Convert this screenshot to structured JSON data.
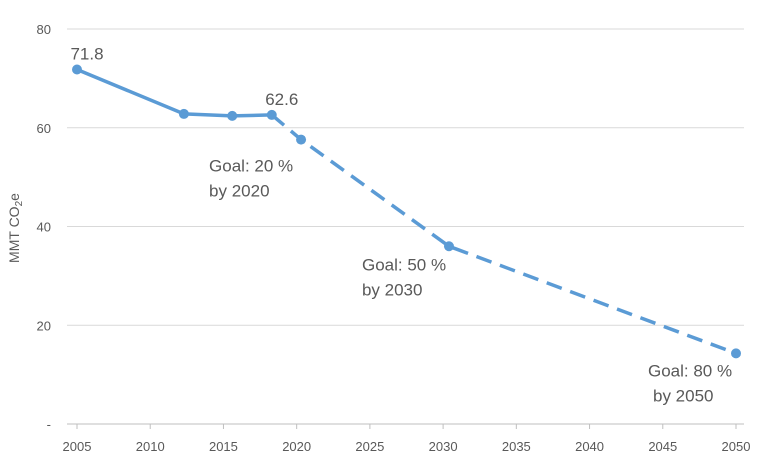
{
  "chart_data": {
    "type": "line",
    "title": "",
    "xlabel": "",
    "ylabel": "MMT CO",
    "ylabel_subscript": "2",
    "ylabel_suffix": "e",
    "xlim": [
      2005,
      2050
    ],
    "ylim": [
      0,
      80
    ],
    "xticks": [
      "2005",
      "2010",
      "2015",
      "2020",
      "2025",
      "2030",
      "2035",
      "2040",
      "2045",
      "2050"
    ],
    "yticks": [
      {
        "value": 0,
        "label": "-"
      },
      {
        "value": 20,
        "label": "20"
      },
      {
        "value": 40,
        "label": "40"
      },
      {
        "value": 60,
        "label": "60"
      },
      {
        "value": 80,
        "label": "80"
      }
    ],
    "grid": "horizontal",
    "color": "#5b9bd5",
    "series": [
      {
        "style": "solid",
        "x": [
          2005,
          2012.3,
          2015.6,
          2018.3
        ],
        "y": [
          71.8,
          62.8,
          62.4,
          62.6
        ]
      },
      {
        "style": "dashed",
        "x": [
          2018.3,
          2020.3,
          2030.4,
          2050
        ],
        "y": [
          62.6,
          57.6,
          36.0,
          14.3
        ]
      }
    ],
    "markers": [
      {
        "x": 2005,
        "y": 71.8
      },
      {
        "x": 2012.3,
        "y": 62.8
      },
      {
        "x": 2015.6,
        "y": 62.4
      },
      {
        "x": 2018.3,
        "y": 62.6
      },
      {
        "x": 2020.3,
        "y": 57.6
      },
      {
        "x": 2030.4,
        "y": 36.0
      },
      {
        "x": 2050,
        "y": 14.3
      }
    ],
    "data_labels": [
      {
        "text": "71.8",
        "x": 2005,
        "y": 71.8
      },
      {
        "text": "62.6",
        "x": 2018.3,
        "y": 62.6
      }
    ],
    "annotations": [
      {
        "lines": [
          "Goal: 20 %",
          "by 2020"
        ],
        "x": 2020.3,
        "y": 57.6
      },
      {
        "lines": [
          "Goal: 50 %",
          "by 2030"
        ],
        "x": 2030.4,
        "y": 36.0
      },
      {
        "lines": [
          "Goal: 80 %",
          "by 2050"
        ],
        "x": 2050,
        "y": 14.3
      }
    ]
  }
}
